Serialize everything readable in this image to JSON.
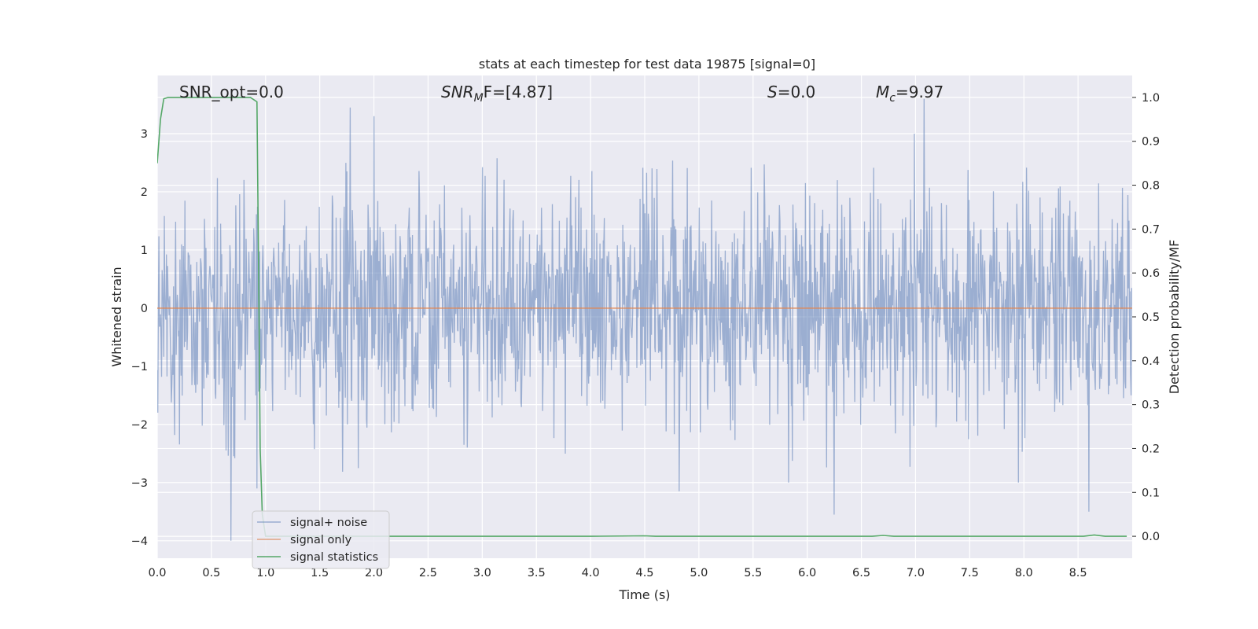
{
  "chart_data": {
    "type": "line",
    "title": "stats at each timestep for test data 19875 [signal=0]",
    "xlabel": "Time (s)",
    "ylabel": "Whitened strain",
    "y2label": "Detection probability/MF",
    "xlim": [
      0.0,
      9.0
    ],
    "ylim": [
      -4.3,
      4.0
    ],
    "y2lim": [
      -0.05,
      1.05
    ],
    "xticks": [
      "0.0",
      "0.5",
      "1.0",
      "1.5",
      "2.0",
      "2.5",
      "3.0",
      "3.5",
      "4.0",
      "4.5",
      "5.0",
      "5.5",
      "6.0",
      "6.5",
      "7.0",
      "7.5",
      "8.0",
      "8.5"
    ],
    "yticks": [
      "3",
      "2",
      "1",
      "0",
      "−1",
      "−2",
      "−3",
      "−4"
    ],
    "y2ticks": [
      "1.0",
      "0.9",
      "0.8",
      "0.7",
      "0.6",
      "0.5",
      "0.4",
      "0.3",
      "0.2",
      "0.1",
      "0.0"
    ],
    "grid": true,
    "legend_position": "lower-left",
    "annotations": {
      "snr_opt": "SNR_opt=0.0",
      "snr_mf_main": "SNR",
      "snr_mf_sub": "M",
      "snr_mf_rest": "F=[4.87]",
      "s_main": "S",
      "s_rest": "=0.0",
      "mc_main": "M",
      "mc_sub": "c",
      "mc_rest": "=9.97"
    },
    "series": [
      {
        "name": "signal+ noise",
        "color": "#4c72b0",
        "axis": "left",
        "noise": {
          "n_samples": 1800,
          "sigma": 1.0,
          "x": [
            0.0,
            9.0
          ],
          "extremes": [
            {
              "x": 0.68,
              "y": -4.0
            },
            {
              "x": 1.78,
              "y": 3.45
            },
            {
              "x": 6.25,
              "y": -3.55
            },
            {
              "x": 7.08,
              "y": 3.6
            },
            {
              "x": 8.6,
              "y": -3.5
            },
            {
              "x": 0.92,
              "y": -3.1
            },
            {
              "x": 2.0,
              "y": 3.3
            },
            {
              "x": 4.82,
              "y": -3.15
            }
          ]
        }
      },
      {
        "name": "signal only",
        "color": "#dd8452",
        "axis": "left",
        "x": [
          0.0,
          9.0
        ],
        "y": [
          0.0,
          0.0
        ]
      },
      {
        "name": "signal statistics",
        "color": "#55a868",
        "axis": "right",
        "x": [
          0.0,
          0.03,
          0.06,
          0.1,
          0.2,
          0.3,
          0.5,
          0.7,
          0.8,
          0.86,
          0.92,
          0.94,
          0.95,
          0.97,
          1.0,
          1.05,
          1.2,
          2.0,
          3.0,
          4.0,
          4.5,
          4.6,
          5.0,
          6.0,
          6.6,
          6.7,
          6.8,
          7.0,
          8.0,
          8.55,
          8.65,
          8.75,
          8.95
        ],
        "y": [
          0.85,
          0.95,
          0.997,
          1.0,
          1.0,
          1.0,
          1.0,
          1.0,
          1.0,
          1.0,
          0.99,
          0.5,
          0.2,
          0.05,
          0.0,
          0.0,
          0.0,
          0.0,
          0.0,
          0.0,
          0.001,
          0.0,
          0.0,
          0.0,
          0.0,
          0.002,
          0.0,
          0.0,
          0.0,
          0.0,
          0.003,
          0.0,
          0.0
        ]
      }
    ]
  }
}
